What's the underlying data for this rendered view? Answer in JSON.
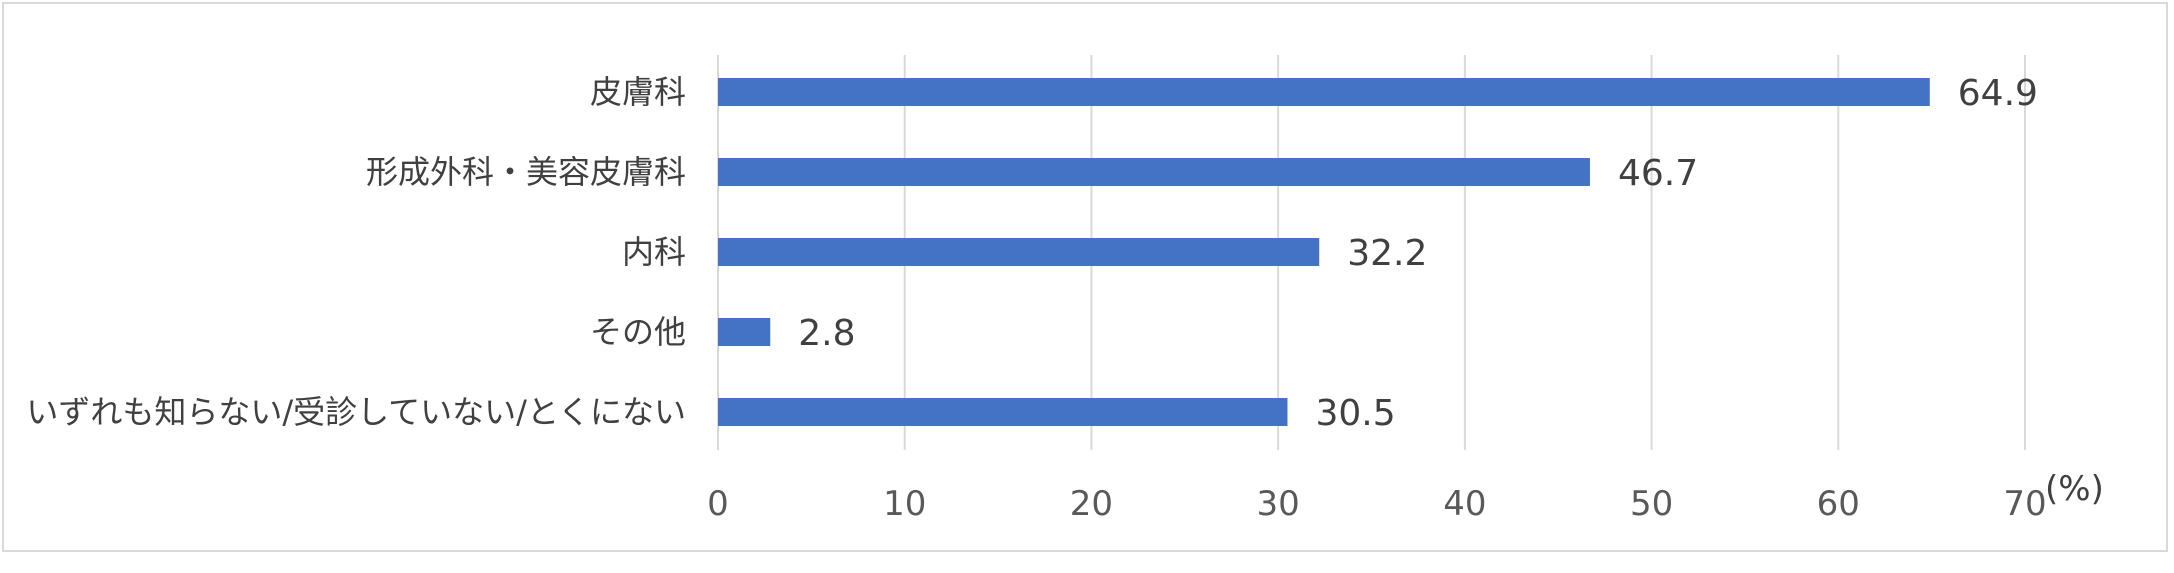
{
  "chart_data": {
    "type": "bar",
    "orientation": "horizontal",
    "categories": [
      "皮膚科",
      "形成外科・美容皮膚科",
      "内科",
      "その他",
      "いずれも知らない/受診していない/とくにない"
    ],
    "values": [
      64.9,
      46.7,
      32.2,
      2.8,
      30.5
    ],
    "value_labels": [
      "64.9",
      "46.7",
      "32.2",
      "2.8",
      "30.5"
    ],
    "xlim": [
      0,
      70
    ],
    "x_ticks": [
      0,
      10,
      20,
      30,
      40,
      50,
      60,
      70
    ],
    "x_tick_labels": [
      "0",
      "10",
      "20",
      "30",
      "40",
      "50",
      "60",
      "70"
    ],
    "unit_label": "(%)",
    "grid": true,
    "bar_color": "#4472c4",
    "grid_color": "#d9d9d9",
    "legend": "none"
  }
}
